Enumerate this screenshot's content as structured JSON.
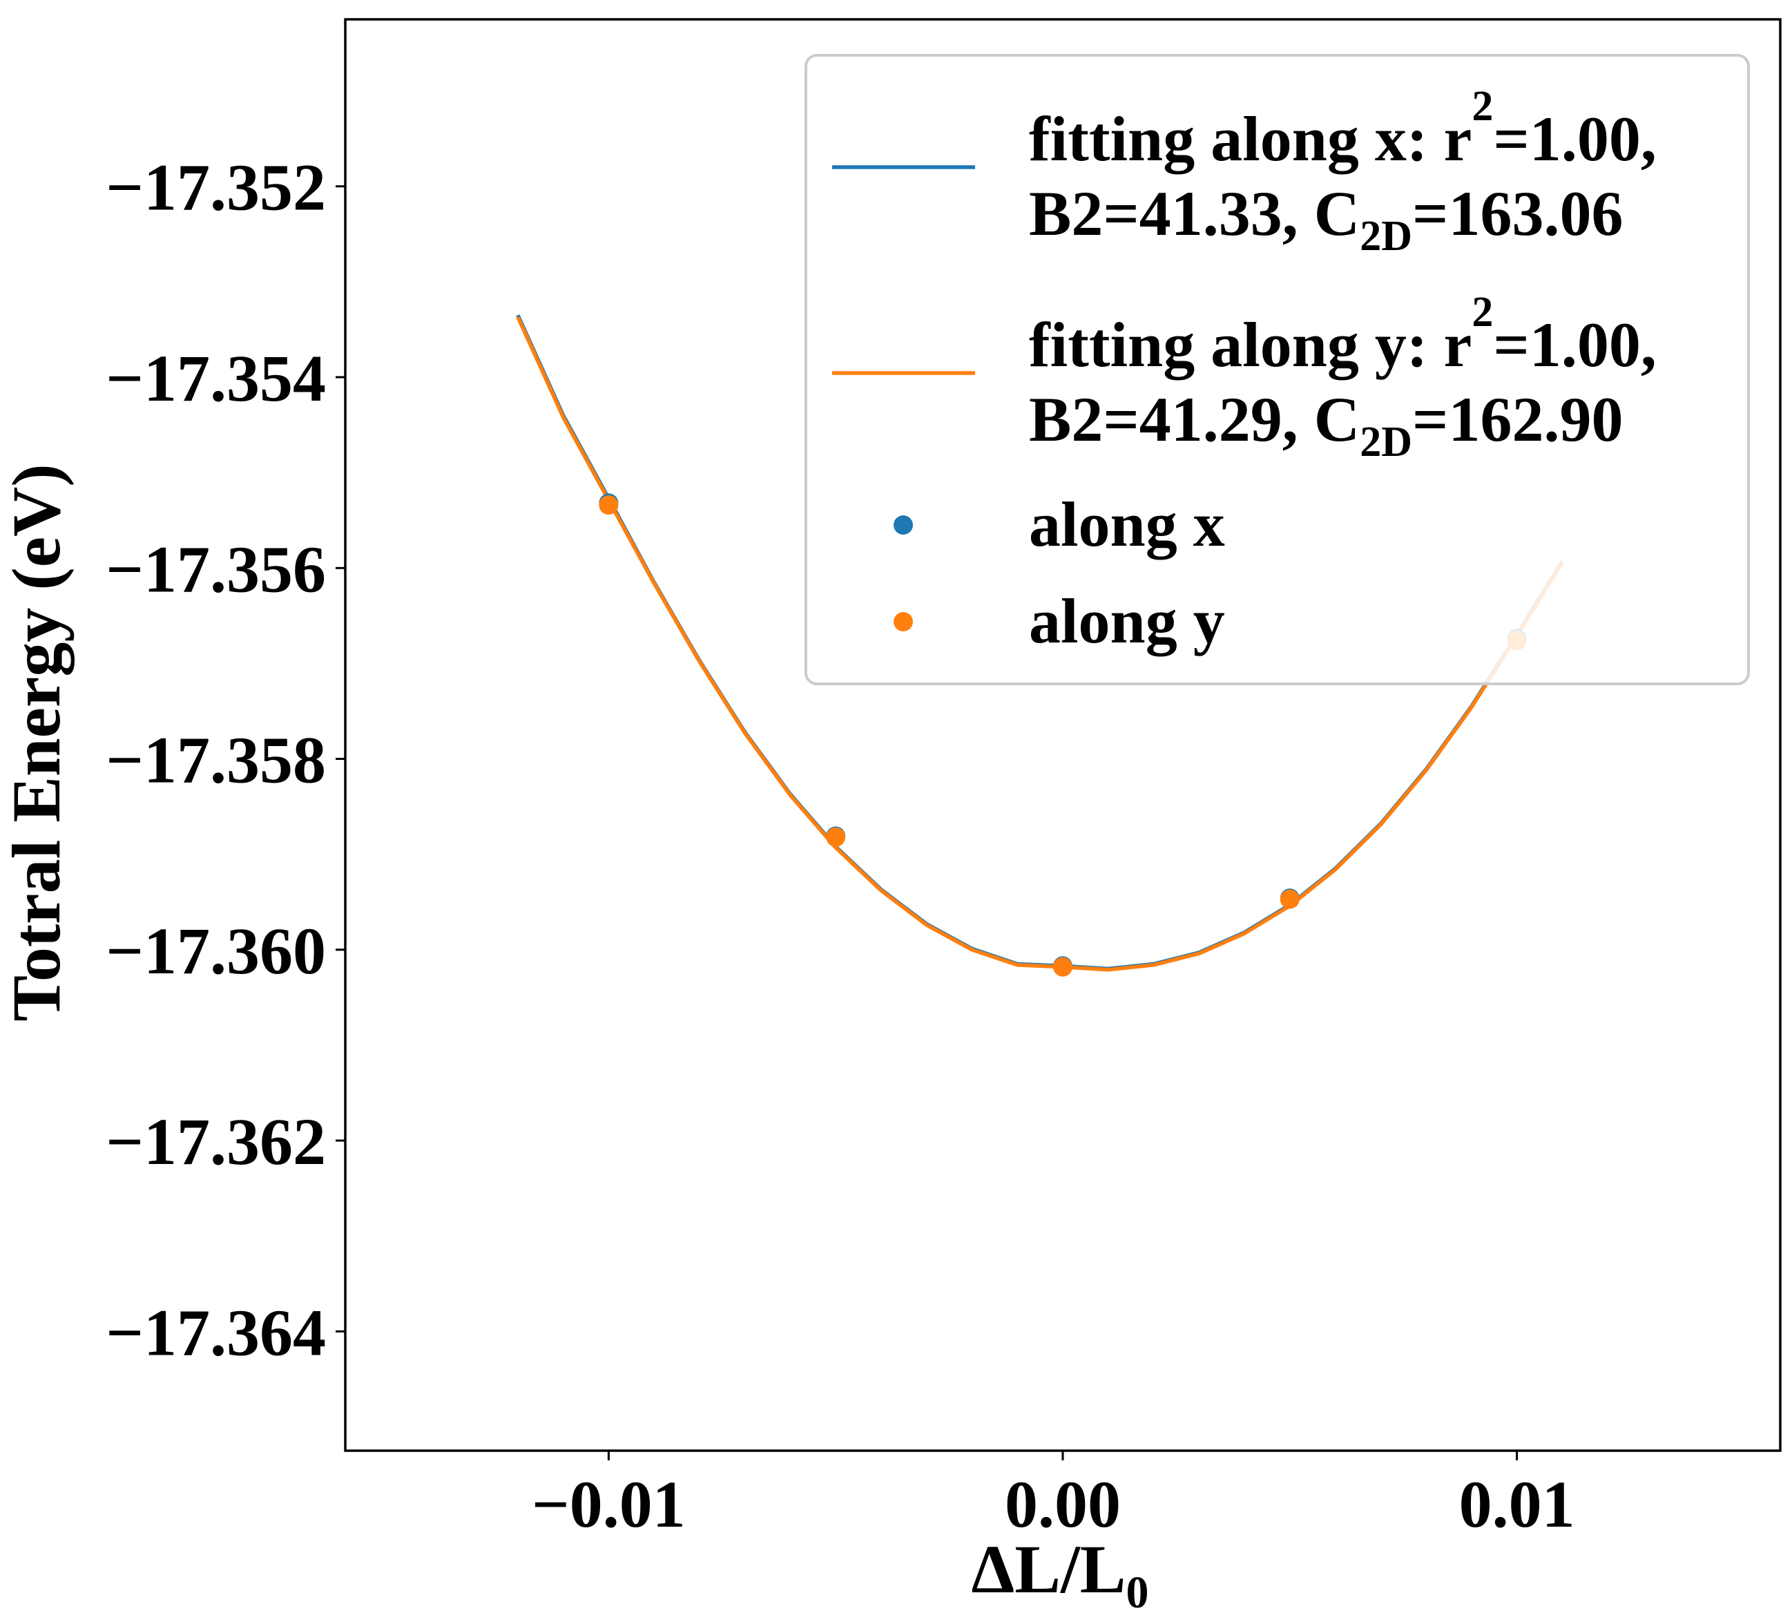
{
  "colors": {
    "series_x": "#1f77b4",
    "series_y": "#ff7f0e",
    "axes": "#000000",
    "legend_border": "#cccccc"
  },
  "chart_data": {
    "type": "scatter",
    "xlabel": "ΔL/L",
    "xlabel_subscript": "0",
    "ylabel": "Totral Energy (eV)",
    "xlim": [
      -0.0158,
      0.0158
    ],
    "ylim": [
      -17.36525,
      -17.35025
    ],
    "xticks": [
      -0.01,
      0.0,
      0.01
    ],
    "xtick_labels": [
      "−0.01",
      "0.00",
      "0.01"
    ],
    "yticks": [
      -17.352,
      -17.354,
      -17.356,
      -17.358,
      -17.36,
      -17.362,
      -17.364
    ],
    "ytick_labels": [
      "−17.352",
      "−17.354",
      "−17.356",
      "−17.358",
      "−17.360",
      "−17.362",
      "−17.364"
    ],
    "grid": false,
    "legend_position": "upper-right",
    "series": [
      {
        "kind": "line",
        "color_key": "series_x",
        "legend_line1": "fitting along x: r",
        "legend_line1_sup": "2",
        "legend_line1_end": "=1.00,",
        "legend_line2": "B2=41.33, C",
        "legend_line2_sub": "2D",
        "legend_line2_end": "=163.06",
        "x": [
          -0.012,
          -0.011,
          -0.01,
          -0.009,
          -0.008,
          -0.007,
          -0.006,
          -0.005,
          -0.004,
          -0.003,
          -0.002,
          -0.001,
          0.0,
          0.001,
          0.002,
          0.003,
          0.004,
          0.005,
          0.006,
          0.007,
          0.008,
          0.009,
          0.01,
          0.011
        ],
        "y": [
          -17.35335,
          -17.3544,
          -17.35527,
          -17.35615,
          -17.35697,
          -17.35772,
          -17.35837,
          -17.35892,
          -17.35937,
          -17.35973,
          -17.35999,
          -17.36015,
          -17.36017,
          -17.3602,
          -17.36015,
          -17.36003,
          -17.35982,
          -17.35953,
          -17.35915,
          -17.35868,
          -17.35811,
          -17.35745,
          -17.3567,
          -17.35593
        ]
      },
      {
        "kind": "line",
        "color_key": "series_y",
        "legend_line1": "fitting along y: r",
        "legend_line1_sup": "2",
        "legend_line1_end": "=1.00,",
        "legend_line2": "B2=41.29, C",
        "legend_line2_sub": "2D",
        "legend_line2_end": "=162.90",
        "x": [
          -0.012,
          -0.011,
          -0.01,
          -0.009,
          -0.008,
          -0.007,
          -0.006,
          -0.005,
          -0.004,
          -0.003,
          -0.002,
          -0.001,
          0.0,
          0.001,
          0.002,
          0.003,
          0.004,
          0.005,
          0.006,
          0.007,
          0.008,
          0.009,
          0.01,
          0.011
        ],
        "y": [
          -17.35337,
          -17.35442,
          -17.35529,
          -17.35616,
          -17.35698,
          -17.35773,
          -17.35838,
          -17.35893,
          -17.35938,
          -17.35974,
          -17.36,
          -17.36016,
          -17.36018,
          -17.36021,
          -17.36016,
          -17.36004,
          -17.35983,
          -17.35954,
          -17.35916,
          -17.35869,
          -17.35812,
          -17.35746,
          -17.35671,
          -17.35594
        ]
      },
      {
        "kind": "scatter",
        "color_key": "series_x",
        "name": "along x",
        "x": [
          -0.01,
          -0.005,
          0.0,
          0.005,
          0.01
        ],
        "y": [
          -17.35532,
          -17.35881,
          -17.36017,
          -17.35946,
          -17.35674
        ]
      },
      {
        "kind": "scatter",
        "color_key": "series_y",
        "name": "along y",
        "x": [
          -0.01,
          -0.005,
          0.0,
          0.005,
          0.01
        ],
        "y": [
          -17.35534,
          -17.35882,
          -17.36018,
          -17.35947,
          -17.35676
        ]
      }
    ]
  }
}
